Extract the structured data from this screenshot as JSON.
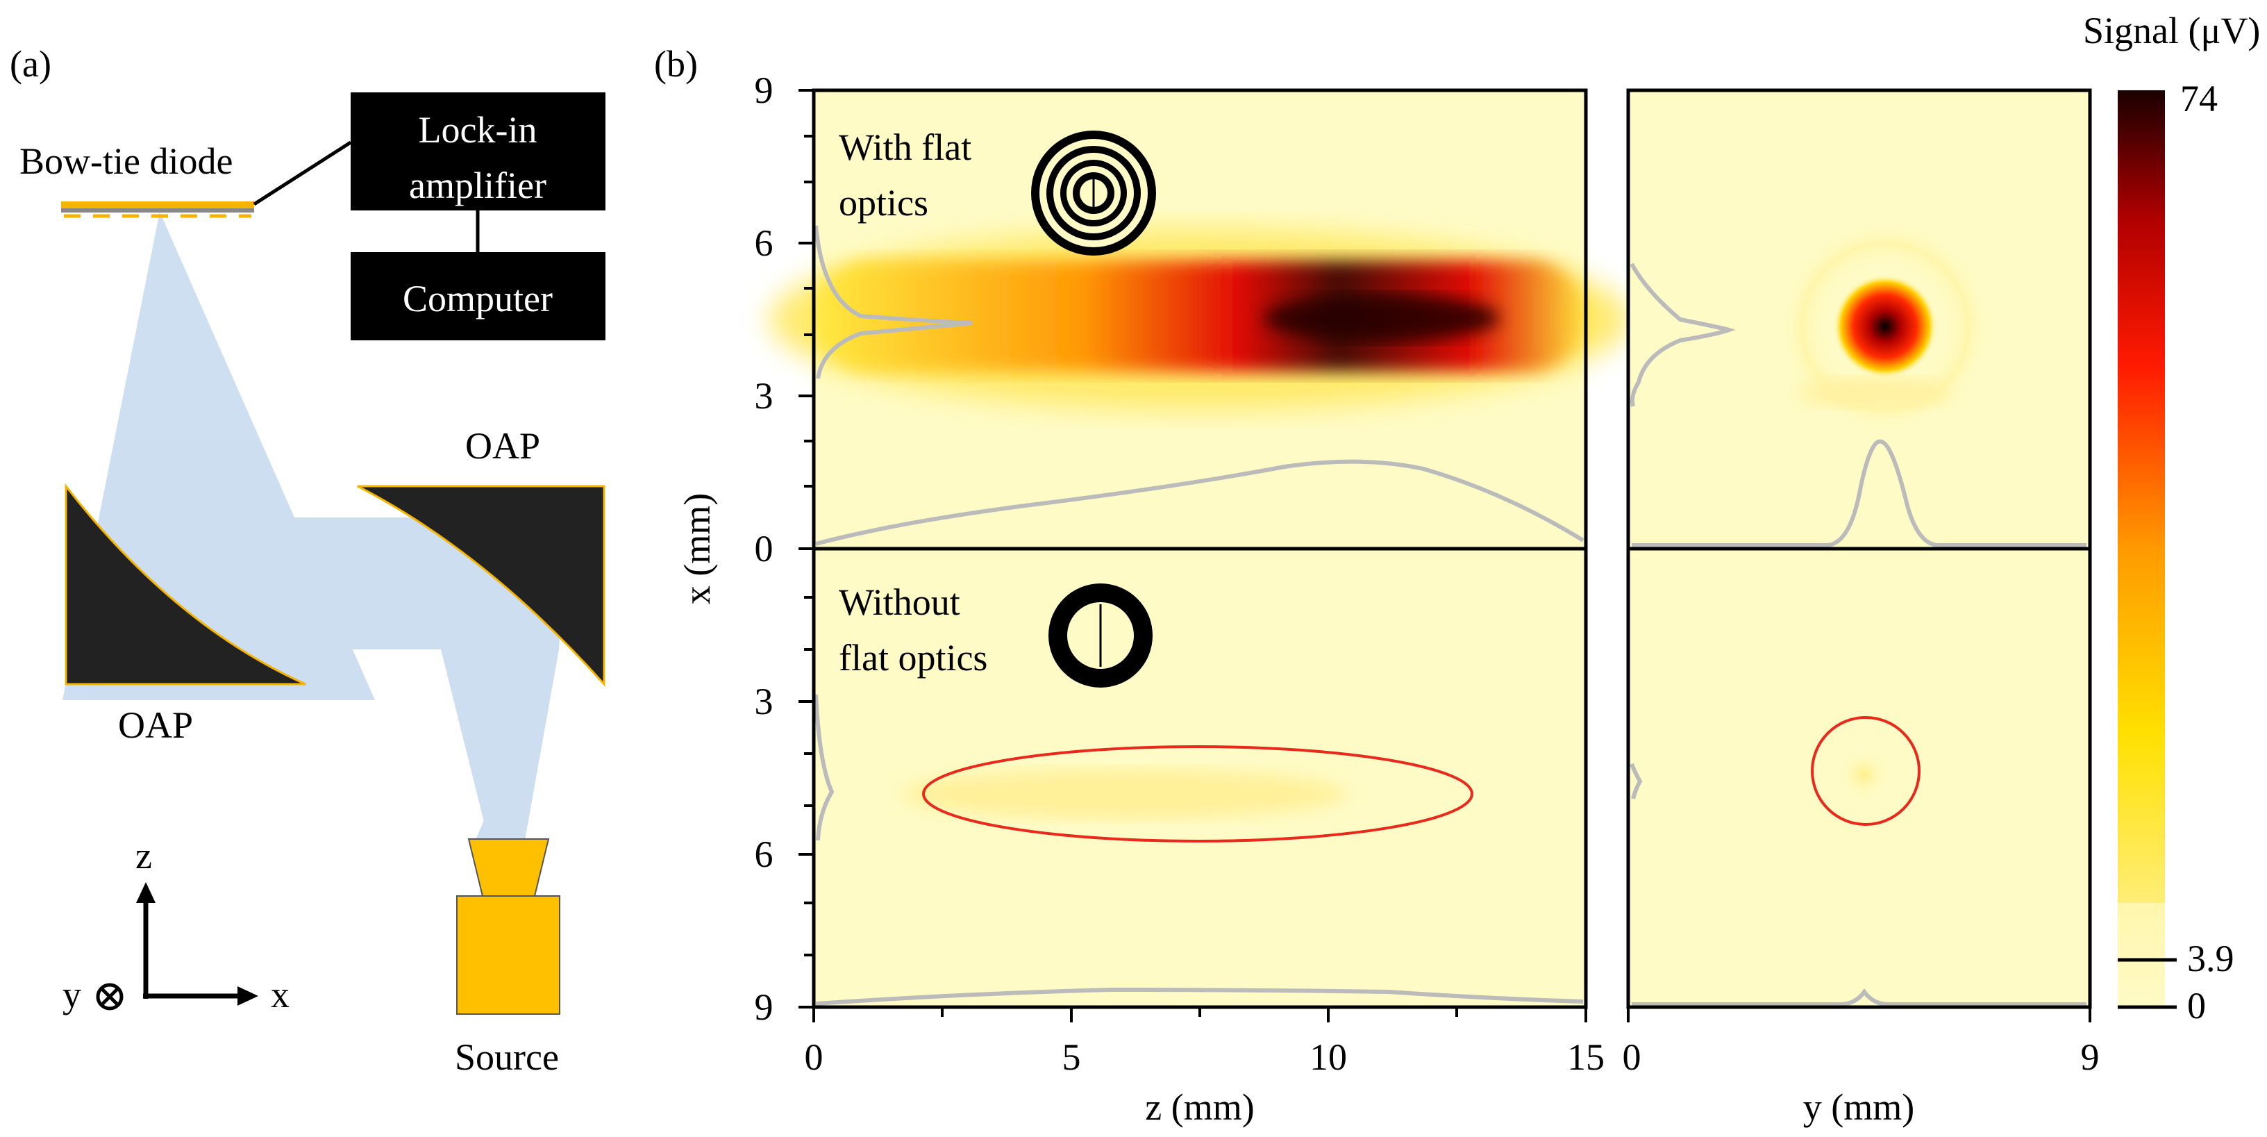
{
  "panel_a": {
    "label": "(a)",
    "detector": "Bow-tie diode",
    "lockin_line1": "Lock-in",
    "lockin_line2": "amplifier",
    "computer": "Computer",
    "mirror_top": "OAP",
    "mirror_bottom": "OAP",
    "source": "Source",
    "axis_z": "z",
    "axis_x": "x",
    "axis_y": "y",
    "beam_color": "#c5d9ef",
    "mirror_color": "#222222",
    "edge_color": "#f4b400",
    "source_color": "#ffc000"
  },
  "panel_b": {
    "label": "(b)",
    "inset_top_line1": "With flat",
    "inset_top_line2": "optics",
    "inset_bottom_line1": "Without",
    "inset_bottom_line2": "flat optics",
    "xlabel_left": "z (mm)",
    "xlabel_right": "y (mm)",
    "ylabel": "x (mm)",
    "colorbar_title": "Signal (μV)",
    "colorbar_ticks": [
      "74",
      "3.9",
      "0"
    ],
    "colorbar_values": [
      74,
      3.9,
      0
    ],
    "left_xticks": [
      "0",
      "5",
      "10",
      "15"
    ],
    "right_xticks": [
      "0",
      "9"
    ],
    "yticks_top": [
      "9",
      "6",
      "3",
      "0"
    ],
    "yticks_bottom": [
      "3",
      "6",
      "9"
    ],
    "highlight_color": "#e8291c",
    "profile_color": "#bbbbbb",
    "background_color": "#fffbc6"
  },
  "chart_data": {
    "type": "heatmap",
    "title": "",
    "colorbar": {
      "label": "Signal (μV)",
      "range": [
        0,
        74
      ],
      "marked": [
        3.9,
        0,
        74
      ]
    },
    "panels": [
      {
        "name": "with-flat-optics z-x",
        "x_label": "z (mm)",
        "x_range": [
          0,
          15
        ],
        "y_label": "x (mm)",
        "y_range": [
          0,
          9
        ],
        "peak_position": {
          "z": 10,
          "x": 4.5
        },
        "peak_signal": 74
      },
      {
        "name": "with-flat-optics y-x",
        "x_label": "y (mm)",
        "x_range": [
          0,
          9
        ],
        "y_label": "x (mm)",
        "y_range": [
          0,
          9
        ],
        "peak_position": {
          "y": 5,
          "x": 4.4
        }
      },
      {
        "name": "without-flat-optics z-x",
        "x_label": "z (mm)",
        "x_range": [
          0,
          15
        ],
        "y_label": "x (mm)",
        "y_range": [
          0,
          9
        ],
        "peak_position": {
          "z": 7.5,
          "x": 4.8
        },
        "peak_signal": 3.9
      },
      {
        "name": "without-flat-optics y-x",
        "x_label": "y (mm)",
        "x_range": [
          0,
          9
        ],
        "y_label": "x (mm)",
        "y_range": [
          0,
          9
        ],
        "peak_position": {
          "y": 4.5,
          "x": 4.4
        }
      }
    ]
  }
}
